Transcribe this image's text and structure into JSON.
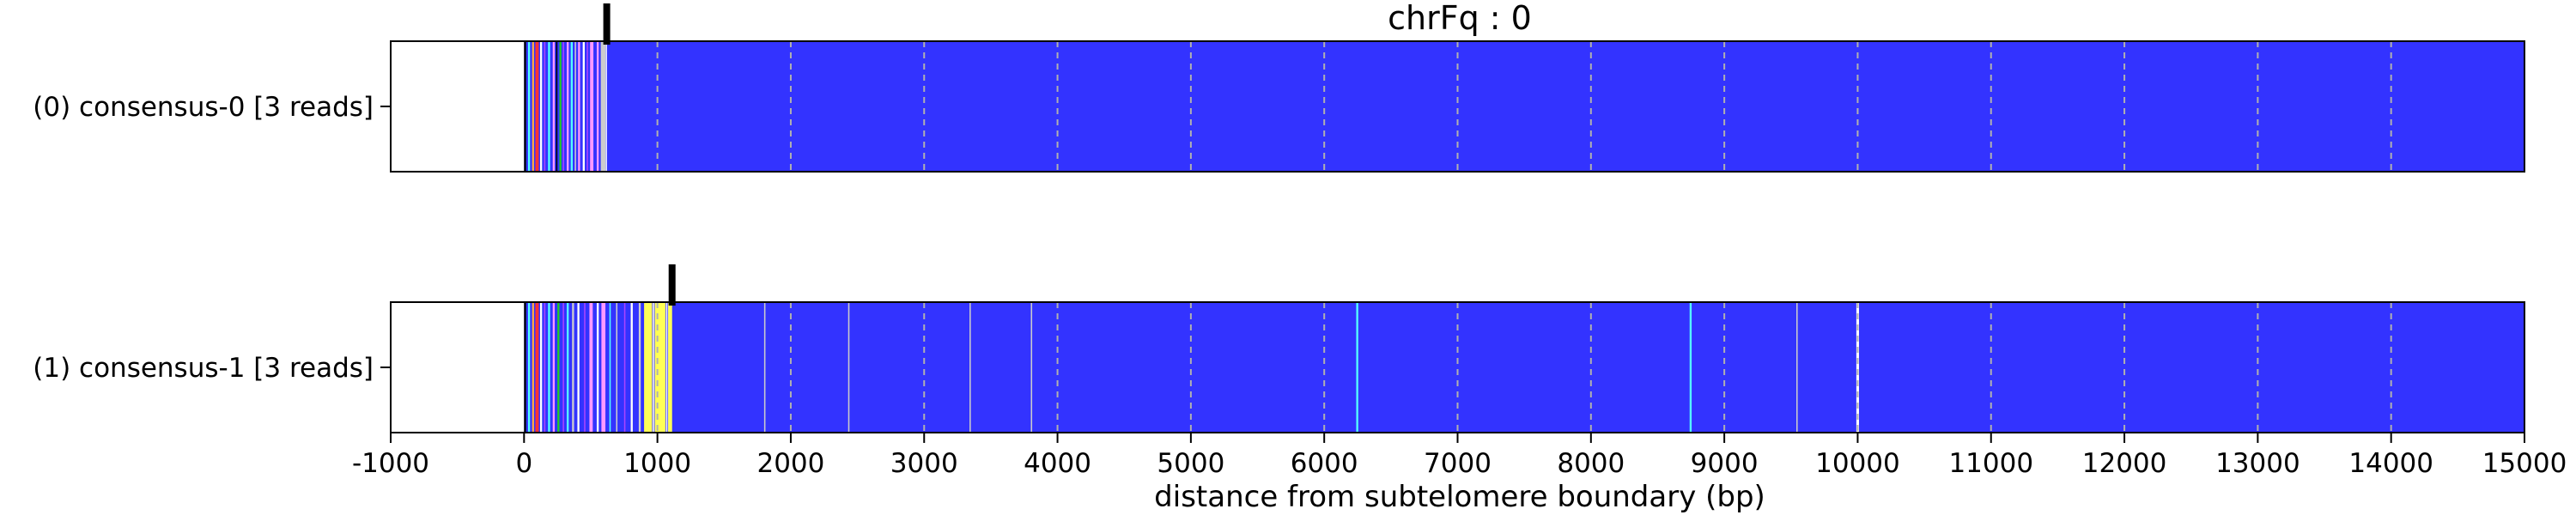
{
  "chart_data": {
    "type": "heatmap",
    "title": "chrFq : 0",
    "xlabel": "distance from subtelomere boundary (bp)",
    "xlim": [
      -1000,
      15000
    ],
    "x_ticks": [
      -1000,
      0,
      1000,
      2000,
      3000,
      4000,
      5000,
      6000,
      7000,
      8000,
      9000,
      10000,
      11000,
      12000,
      13000,
      14000,
      15000
    ],
    "grid": "vertical dashed gridlines at each x tick",
    "background_color": "#3333ff",
    "empty_color": "#ffffff",
    "tvr_colors": [
      "#ffff55",
      "#ff99ff",
      "#55ffff",
      "#22cc22",
      "#ffaa44",
      "#aa44ff",
      "#cccccc",
      "#ff3333",
      "#ffffff",
      "#000000"
    ],
    "rows": [
      {
        "label": "(0) consensus-0 [3 reads]",
        "start": 0,
        "tvr_end": 620,
        "marker": 620,
        "stripes": [
          {
            "start": 0,
            "end": 15,
            "color": "#000000"
          },
          {
            "start": 30,
            "end": 45,
            "color": "#55ffff"
          },
          {
            "start": 60,
            "end": 75,
            "color": "#ffaa44"
          },
          {
            "start": 85,
            "end": 110,
            "color": "#ff3333"
          },
          {
            "start": 120,
            "end": 135,
            "color": "#ffffff"
          },
          {
            "start": 150,
            "end": 160,
            "color": "#aa44ff"
          },
          {
            "start": 180,
            "end": 195,
            "color": "#55ffff"
          },
          {
            "start": 215,
            "end": 230,
            "color": "#ff99ff"
          },
          {
            "start": 240,
            "end": 250,
            "color": "#000000"
          },
          {
            "start": 265,
            "end": 280,
            "color": "#22cc22"
          },
          {
            "start": 290,
            "end": 300,
            "color": "#aa44ff"
          },
          {
            "start": 320,
            "end": 335,
            "color": "#ff99ff"
          },
          {
            "start": 350,
            "end": 365,
            "color": "#55ffff"
          },
          {
            "start": 380,
            "end": 390,
            "color": "#cccccc"
          },
          {
            "start": 405,
            "end": 420,
            "color": "#ff99ff"
          },
          {
            "start": 440,
            "end": 455,
            "color": "#ffffff"
          },
          {
            "start": 470,
            "end": 480,
            "color": "#aa44ff"
          },
          {
            "start": 495,
            "end": 520,
            "color": "#ff99ff"
          },
          {
            "start": 545,
            "end": 560,
            "color": "#ff99ff"
          },
          {
            "start": 575,
            "end": 610,
            "color": "#cccccc"
          },
          {
            "start": 612,
            "end": 620,
            "color": "#ffffff"
          }
        ]
      },
      {
        "label": "(1) consensus-1 [3 reads]",
        "start": 0,
        "tvr_end": 1110,
        "marker": 1110,
        "stripes": [
          {
            "start": 0,
            "end": 15,
            "color": "#000000"
          },
          {
            "start": 30,
            "end": 45,
            "color": "#55ffff"
          },
          {
            "start": 60,
            "end": 75,
            "color": "#ffaa44"
          },
          {
            "start": 85,
            "end": 110,
            "color": "#ff3333"
          },
          {
            "start": 120,
            "end": 135,
            "color": "#ffffff"
          },
          {
            "start": 150,
            "end": 160,
            "color": "#aa44ff"
          },
          {
            "start": 180,
            "end": 195,
            "color": "#55ffff"
          },
          {
            "start": 215,
            "end": 230,
            "color": "#ff99ff"
          },
          {
            "start": 250,
            "end": 265,
            "color": "#22cc22"
          },
          {
            "start": 290,
            "end": 300,
            "color": "#aa44ff"
          },
          {
            "start": 320,
            "end": 335,
            "color": "#55ffff"
          },
          {
            "start": 360,
            "end": 375,
            "color": "#cccccc"
          },
          {
            "start": 400,
            "end": 415,
            "color": "#ffffff"
          },
          {
            "start": 450,
            "end": 460,
            "color": "#aa44ff"
          },
          {
            "start": 490,
            "end": 515,
            "color": "#ff99ff"
          },
          {
            "start": 545,
            "end": 560,
            "color": "#ffffff"
          },
          {
            "start": 580,
            "end": 610,
            "color": "#ff99ff"
          },
          {
            "start": 640,
            "end": 650,
            "color": "#55ffff"
          },
          {
            "start": 690,
            "end": 700,
            "color": "#cccccc"
          },
          {
            "start": 750,
            "end": 760,
            "color": "#aa44ff"
          },
          {
            "start": 800,
            "end": 815,
            "color": "#ffffff"
          },
          {
            "start": 860,
            "end": 875,
            "color": "#cccccc"
          },
          {
            "start": 900,
            "end": 960,
            "color": "#ffff55"
          },
          {
            "start": 965,
            "end": 975,
            "color": "#ffffff"
          },
          {
            "start": 980,
            "end": 1060,
            "color": "#ffff55"
          },
          {
            "start": 1065,
            "end": 1075,
            "color": "#ffffff"
          },
          {
            "start": 1080,
            "end": 1110,
            "color": "#ffff55"
          },
          {
            "start": 1800,
            "end": 1810,
            "color": "#cccccc"
          },
          {
            "start": 2430,
            "end": 2440,
            "color": "#cccccc"
          },
          {
            "start": 3340,
            "end": 3350,
            "color": "#cccccc"
          },
          {
            "start": 3800,
            "end": 3810,
            "color": "#cccccc"
          },
          {
            "start": 6240,
            "end": 6255,
            "color": "#55ffff"
          },
          {
            "start": 8740,
            "end": 8755,
            "color": "#55ffff"
          },
          {
            "start": 9540,
            "end": 9550,
            "color": "#cccccc"
          },
          {
            "start": 9990,
            "end": 10010,
            "color": "#ffffff"
          }
        ]
      }
    ]
  }
}
